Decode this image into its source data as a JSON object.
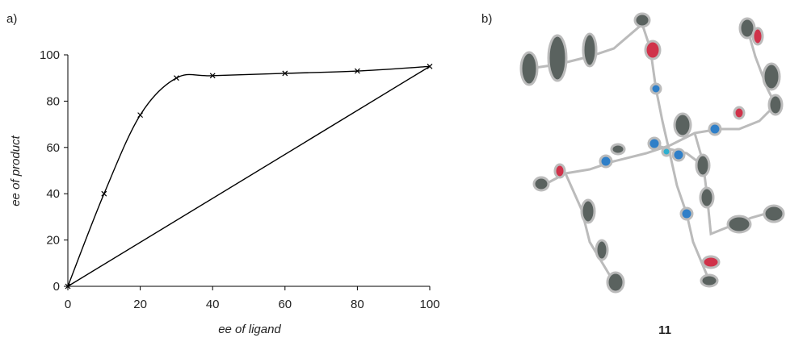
{
  "chart_data": {
    "type": "line",
    "panel_label": "a)",
    "xlabel": "ee of ligand",
    "ylabel": "ee of product",
    "xlim": [
      0,
      100
    ],
    "xticks": [
      0,
      20,
      40,
      60,
      80,
      100
    ],
    "ylim": [
      0,
      100
    ],
    "yticks": [
      0,
      20,
      40,
      60,
      80,
      100
    ],
    "series": [
      {
        "color": "#000000",
        "marker": "x",
        "smooth": true,
        "x": [
          0,
          10,
          20,
          30,
          40,
          60,
          80,
          100
        ],
        "values": [
          0,
          40,
          74,
          90,
          91,
          92,
          93,
          95
        ]
      },
      {
        "color": "#000000",
        "marker": "none",
        "smooth": false,
        "x": [
          0,
          100
        ],
        "values": [
          0,
          95
        ]
      }
    ]
  },
  "structure": {
    "panel_label": "b)",
    "compound_label": "11"
  }
}
